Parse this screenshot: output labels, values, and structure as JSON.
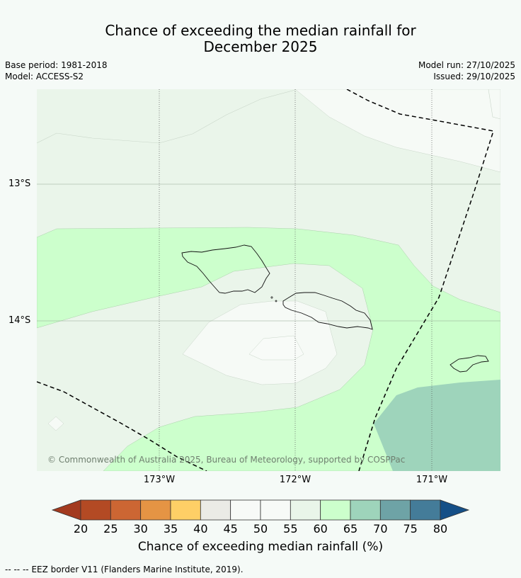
{
  "title": {
    "line1": "Chance of exceeding the median rainfall for",
    "line2": "December 2025"
  },
  "meta": {
    "base_period": "Base period: 1981-2018",
    "model": "Model: ACCESS-S2",
    "model_run": "Model run: 27/10/2025",
    "issued": "Issued: 29/10/2025"
  },
  "axes": {
    "lat_labels": [
      "13°S",
      "14°S"
    ],
    "lon_labels": [
      "173°W",
      "172°W",
      "171°W"
    ]
  },
  "copyright": "© Commonwealth of Australia 2025, Bureau of Meteorology, supported by COSPPac",
  "colorbar": {
    "title": "Chance of exceeding median rainfall (%)",
    "ticks": [
      "20",
      "25",
      "30",
      "35",
      "40",
      "45",
      "50",
      "55",
      "60",
      "65",
      "70",
      "75",
      "80"
    ],
    "colors": [
      "#a33a1f",
      "#b34a24",
      "#cc6633",
      "#e59444",
      "#fecf66",
      "#ebebe6",
      "#f7faf7",
      "#f7faf7",
      "#e9f5e9",
      "#ccffcc",
      "#9ed4bb",
      "#6ea3a6",
      "#447c99",
      "#154f87"
    ]
  },
  "legend": {
    "eez_symbol": "-- -- --",
    "eez_text": "EEZ border V11 (Flanders Marine Institute, 2019)."
  }
}
